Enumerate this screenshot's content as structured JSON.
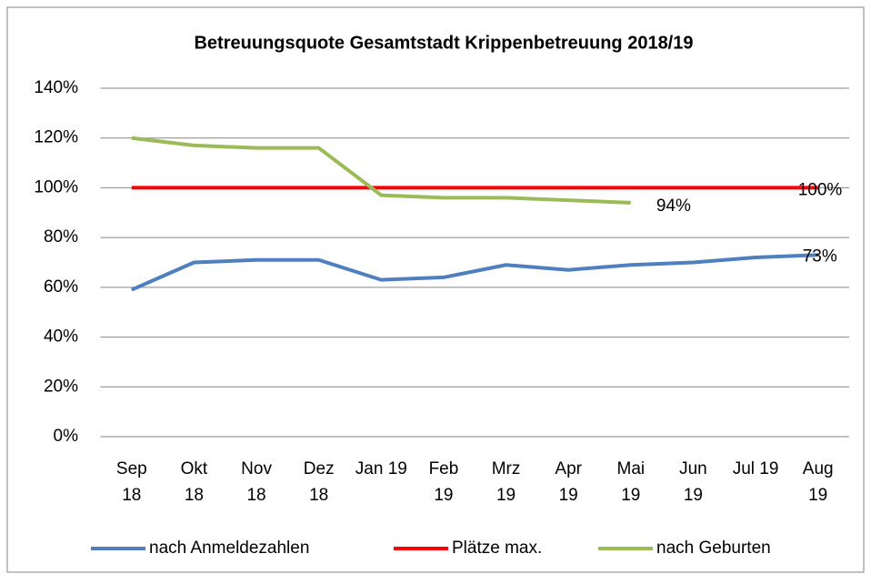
{
  "chart_data": {
    "type": "line",
    "title": "Betreuungsquote Gesamtstadt Krippenbetreuung 2018/19",
    "categories": [
      "Sep\n18",
      "Okt\n18",
      "Nov\n18",
      "Dez\n18",
      "Jan 19",
      "Feb\n19",
      "Mrz\n19",
      "Apr\n19",
      "Mai\n19",
      "Jun\n19",
      "Jul 19",
      "Aug\n19"
    ],
    "series": [
      {
        "name": "nach Anmeldezahlen",
        "color": "#4f7fbf",
        "values": [
          59,
          70,
          71,
          71,
          63,
          64,
          69,
          67,
          69,
          70,
          72,
          73
        ],
        "value_labels": [
          null,
          null,
          null,
          null,
          null,
          null,
          null,
          null,
          null,
          null,
          null,
          "73%"
        ]
      },
      {
        "name": "Plätze max.",
        "color": "#ff0000",
        "values": [
          100,
          100,
          100,
          100,
          100,
          100,
          100,
          100,
          100,
          100,
          100,
          100
        ],
        "value_labels": [
          null,
          null,
          null,
          null,
          null,
          null,
          null,
          null,
          null,
          null,
          null,
          "100%"
        ]
      },
      {
        "name": "nach Geburten",
        "color": "#9bbb59",
        "values": [
          120,
          117,
          116,
          116,
          97,
          96,
          96,
          95,
          94,
          null,
          null,
          null
        ],
        "value_labels": [
          null,
          null,
          null,
          null,
          null,
          null,
          null,
          null,
          "94%",
          null,
          null,
          null
        ]
      }
    ],
    "ylim": [
      0,
      140
    ],
    "yticks": [
      {
        "value": 0,
        "label": "0%"
      },
      {
        "value": 20,
        "label": "20%"
      },
      {
        "value": 40,
        "label": "40%"
      },
      {
        "value": 60,
        "label": "60%"
      },
      {
        "value": 80,
        "label": "80%"
      },
      {
        "value": 100,
        "label": "100%"
      },
      {
        "value": 120,
        "label": "120%"
      },
      {
        "value": 140,
        "label": "140%"
      }
    ],
    "grid": true,
    "legend": "bottom"
  }
}
